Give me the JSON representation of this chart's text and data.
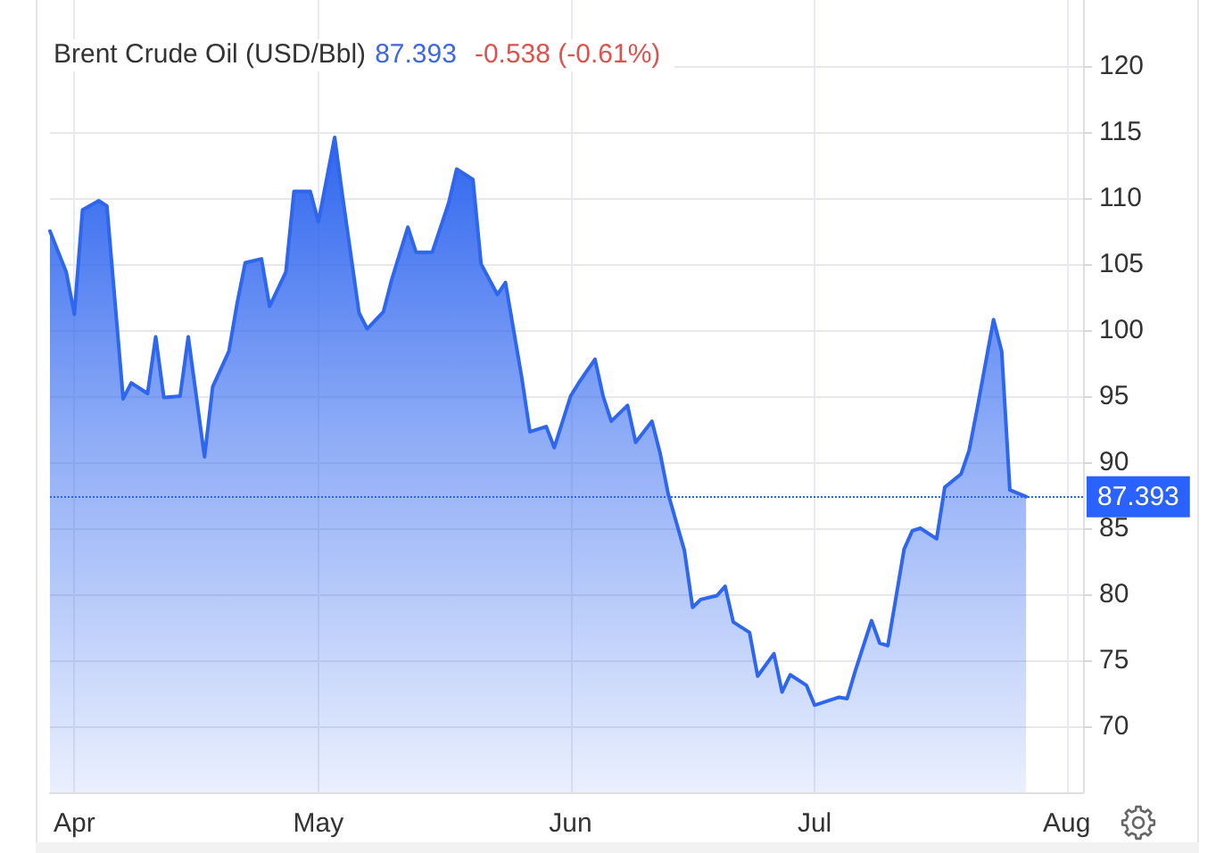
{
  "chart_data": {
    "type": "area",
    "title": "Brent Crude Oil (USD/Bbl)",
    "annotations": [
      "87.393",
      "-0.538 (-0.61%)"
    ],
    "x": [
      "--03-29",
      "--03-31",
      "--04-01",
      "--04-02",
      "--04-04",
      "--04-05",
      "--04-07",
      "--04-08",
      "--04-10",
      "--04-11",
      "--04-12",
      "--04-14",
      "--04-15",
      "--04-17",
      "--04-18",
      "--04-20",
      "--04-21",
      "--04-22",
      "--04-24",
      "--04-25",
      "--04-27",
      "--04-28",
      "--04-30",
      "--05-01",
      "--05-03",
      "--05-04",
      "--05-06",
      "--05-07",
      "--05-09",
      "--05-10",
      "--05-12",
      "--05-13",
      "--05-15",
      "--05-17",
      "--05-18",
      "--05-20",
      "--05-21",
      "--05-23",
      "--05-24",
      "--05-26",
      "--05-27",
      "--05-29",
      "--05-30",
      "--06-01",
      "--06-02",
      "--06-04",
      "--06-05",
      "--06-06",
      "--06-08",
      "--06-09",
      "--06-11",
      "--06-12",
      "--06-13",
      "--06-15",
      "--06-16",
      "--06-17",
      "--06-19",
      "--06-20",
      "--06-21",
      "--06-23",
      "--06-24",
      "--06-26",
      "--06-27",
      "--06-28",
      "--06-30",
      "--07-01",
      "--07-02",
      "--07-04",
      "--07-05",
      "--07-06",
      "--07-08",
      "--07-09",
      "--07-10",
      "--07-12",
      "--07-13",
      "--07-14",
      "--07-16",
      "--07-17",
      "--07-19",
      "--07-20",
      "--07-21",
      "--07-23",
      "--07-24",
      "--07-25",
      "--07-27"
    ],
    "values": [
      107.5,
      104.4,
      101.2,
      109.1,
      109.8,
      109.4,
      94.8,
      96.0,
      95.2,
      99.5,
      94.9,
      95.0,
      99.5,
      90.4,
      95.7,
      98.4,
      102.0,
      105.1,
      105.4,
      101.8,
      104.4,
      110.5,
      110.5,
      108.2,
      114.6,
      110.0,
      101.3,
      100.1,
      101.4,
      103.8,
      107.8,
      105.9,
      105.9,
      109.6,
      112.2,
      111.4,
      105.0,
      102.7,
      103.6,
      96.4,
      92.3,
      92.7,
      91.1,
      95.0,
      96.0,
      97.8,
      95.0,
      93.1,
      94.3,
      91.5,
      93.1,
      90.7,
      87.6,
      83.3,
      79.0,
      79.6,
      79.9,
      80.6,
      77.9,
      77.1,
      73.8,
      75.5,
      72.6,
      73.9,
      73.1,
      71.6,
      71.8,
      72.2,
      72.1,
      74.2,
      78.0,
      76.3,
      76.1,
      83.4,
      84.8,
      85.0,
      84.2,
      88.1,
      89.1,
      90.9,
      94.1,
      100.8,
      98.4,
      87.9,
      87.393
    ],
    "color": "#2f66ef",
    "xlim": [
      "--03-29",
      "--08-03"
    ],
    "xticks": [
      {
        "value": "--04-01",
        "label": "Apr"
      },
      {
        "value": "--05-01",
        "label": "May"
      },
      {
        "value": "--06-01",
        "label": "Jun"
      },
      {
        "value": "--07-01",
        "label": "Jul"
      },
      {
        "value": "--08-01",
        "label": "Aug"
      }
    ],
    "ylim": [
      65,
      125
    ],
    "yticks": [
      70,
      75,
      80,
      85,
      90,
      95,
      100,
      105,
      110,
      115,
      120
    ],
    "ref_lines": [
      {
        "axis": "y",
        "value": 87.393,
        "label": "87.393",
        "color": "#2962ff",
        "line_style": "dotted"
      }
    ],
    "grid": true,
    "marker": "none",
    "line_style": "solid"
  }
}
